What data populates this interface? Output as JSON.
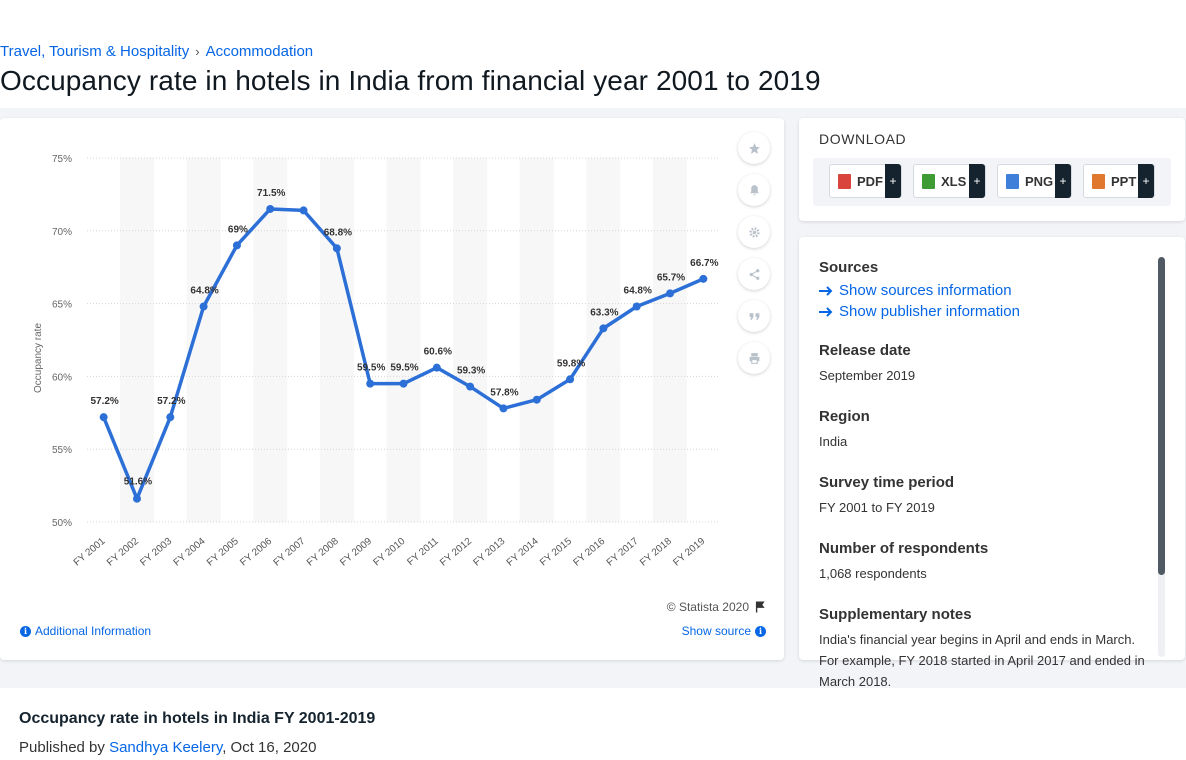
{
  "breadcrumb": {
    "items": [
      "Travel, Tourism & Hospitality",
      "Accommodation"
    ],
    "separator": "›"
  },
  "page": {
    "title": "Occupancy rate in hotels in India from financial year 2001 to 2019"
  },
  "chart_data": {
    "type": "line",
    "title": "Occupancy rate in hotels in India from financial year 2001 to 2019",
    "xlabel": "",
    "ylabel": "Occupancy rate",
    "ylim": [
      50,
      75
    ],
    "yticks": [
      50,
      55,
      60,
      65,
      70,
      75
    ],
    "ytick_labels": [
      "50%",
      "55%",
      "60%",
      "65%",
      "70%",
      "75%"
    ],
    "grid": true,
    "categories": [
      "FY 2001",
      "FY 2002",
      "FY 2003",
      "FY 2004",
      "FY 2005",
      "FY 2006",
      "FY 2007",
      "FY 2008",
      "FY 2009",
      "FY 2010",
      "FY 2011",
      "FY 2012",
      "FY 2013",
      "FY 2014",
      "FY 2015",
      "FY 2016",
      "FY 2017",
      "FY 2018",
      "FY 2019"
    ],
    "values": [
      57.2,
      51.6,
      57.2,
      64.8,
      69,
      71.5,
      71.4,
      68.8,
      59.5,
      59.5,
      60.6,
      59.3,
      57.8,
      58.4,
      59.8,
      63.3,
      64.8,
      65.7,
      66.7
    ],
    "data_labels": [
      "57.2%",
      "51.6%",
      "57.2%",
      "64.8%",
      "69%",
      "71.5%",
      "",
      "68.8%",
      "59.5%",
      "59.5%",
      "60.6%",
      "59.3%",
      "57.8%",
      "",
      "59.8%",
      "63.3%",
      "64.8%",
      "65.7%",
      "66.7%"
    ],
    "color": "#2c6fd6"
  },
  "chart_footer": {
    "copyright": "© Statista 2020",
    "additional_info": "Additional Information",
    "show_source": "Show source"
  },
  "tools": [
    "star-icon",
    "bell-icon",
    "gear-icon",
    "share-icon",
    "quote-icon",
    "print-icon"
  ],
  "download": {
    "title": "DOWNLOAD",
    "formats": [
      {
        "label": "PDF",
        "icon": "pdf-file-icon",
        "color": "#d9453d"
      },
      {
        "label": "XLS",
        "icon": "xls-file-icon",
        "color": "#3f9c35"
      },
      {
        "label": "PNG",
        "icon": "png-file-icon",
        "color": "#3d7fd9"
      },
      {
        "label": "PPT",
        "icon": "ppt-file-icon",
        "color": "#e0782d"
      }
    ],
    "plus": "+"
  },
  "details": {
    "sources_heading": "Sources",
    "show_sources": "Show sources information",
    "show_publisher": "Show publisher information",
    "release_date_heading": "Release date",
    "release_date": "September 2019",
    "region_heading": "Region",
    "region": "India",
    "survey_period_heading": "Survey time period",
    "survey_period": "FY 2001 to FY 2019",
    "respondents_heading": "Number of respondents",
    "respondents": "1,068 respondents",
    "notes_heading": "Supplementary notes",
    "notes": "India's financial year begins in April and ends in March. For example, FY 2018 started in April 2017 and ended in March 2018."
  },
  "publication": {
    "title": "Occupancy rate in hotels in India FY 2001-2019",
    "published_by": "Published by",
    "author": "Sandhya Keelery",
    "date": ", Oct 16, 2020"
  }
}
